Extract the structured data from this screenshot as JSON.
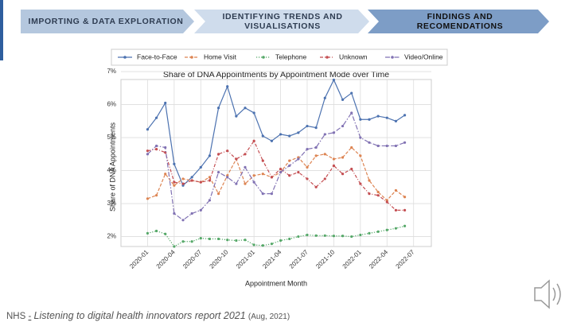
{
  "header": {
    "steps": [
      {
        "lines": [
          "IMPORTING & DATA EXPLORATION"
        ]
      },
      {
        "lines": [
          "IDENTIFYING TRENDS AND",
          "VISUALISATIONS"
        ]
      },
      {
        "lines": [
          "FINDINGS AND",
          "RECOMENDATIONS"
        ]
      }
    ]
  },
  "chart_data": {
    "type": "line",
    "title": "Share of DNA Appointments by Appointment Mode over Time",
    "x_label": "Appointment Month",
    "y_label": "Share of DNA Appointments",
    "x": [
      "2020-01",
      "2020-02",
      "2020-03",
      "2020-04",
      "2020-05",
      "2020-06",
      "2020-07",
      "2020-08",
      "2020-09",
      "2020-10",
      "2020-11",
      "2020-12",
      "2021-01",
      "2021-02",
      "2021-03",
      "2021-04",
      "2021-05",
      "2021-06",
      "2021-07",
      "2021-08",
      "2021-09",
      "2021-10",
      "2021-11",
      "2021-12",
      "2022-01",
      "2022-02",
      "2022-03",
      "2022-04",
      "2022-05",
      "2022-06"
    ],
    "xlim": [
      "2019-10",
      "2022-09"
    ],
    "xticks": [
      "2020-01",
      "2020-04",
      "2020-07",
      "2020-10",
      "2021-01",
      "2021-04",
      "2021-07",
      "2021-10",
      "2022-01",
      "2022-04",
      "2022-07"
    ],
    "ylim": [
      1.7,
      7.05
    ],
    "yticks": [
      {
        "value": 2,
        "label": "2%"
      },
      {
        "value": 3,
        "label": "3%"
      },
      {
        "value": 4,
        "label": "4%"
      },
      {
        "value": 5,
        "label": "5%"
      },
      {
        "value": 6,
        "label": "6%"
      },
      {
        "value": 7,
        "label": "7%"
      }
    ],
    "grid": true,
    "legend": "top",
    "series": [
      {
        "name": "Face-to-Face",
        "color": "#4c72b0",
        "dash": "solid",
        "values": [
          5.25,
          5.6,
          6.05,
          4.2,
          3.55,
          3.8,
          4.1,
          4.45,
          5.9,
          6.55,
          5.65,
          5.9,
          5.75,
          5.05,
          4.9,
          5.1,
          5.05,
          5.15,
          5.35,
          5.3,
          6.2,
          6.75,
          6.15,
          6.35,
          5.55,
          5.55,
          5.65,
          5.6,
          5.5,
          5.68
        ]
      },
      {
        "name": "Home Visit",
        "color": "#dd8452",
        "dash": "dashed",
        "values": [
          3.15,
          3.25,
          3.9,
          3.55,
          3.75,
          3.7,
          3.65,
          3.8,
          3.3,
          3.85,
          4.35,
          3.6,
          3.85,
          3.9,
          3.8,
          3.95,
          4.3,
          4.4,
          4.1,
          4.45,
          4.5,
          4.35,
          4.4,
          4.7,
          4.45,
          3.7,
          3.35,
          3.1,
          3.4,
          3.2
        ]
      },
      {
        "name": "Telephone",
        "color": "#55a868",
        "dash": "dotted",
        "values": [
          2.1,
          2.17,
          2.08,
          1.7,
          1.85,
          1.85,
          1.95,
          1.93,
          1.93,
          1.9,
          1.88,
          1.9,
          1.75,
          1.73,
          1.78,
          1.88,
          1.93,
          2.0,
          2.05,
          2.03,
          2.03,
          2.02,
          2.02,
          2.0,
          2.05,
          2.1,
          2.15,
          2.2,
          2.25,
          2.32
        ]
      },
      {
        "name": "Unknown",
        "color": "#c44e52",
        "dash": "dashdot",
        "values": [
          4.6,
          4.65,
          4.55,
          3.65,
          3.6,
          3.7,
          3.65,
          3.7,
          4.5,
          4.6,
          4.35,
          4.5,
          4.9,
          4.3,
          3.8,
          4.05,
          3.85,
          3.95,
          3.75,
          3.5,
          3.75,
          4.15,
          3.9,
          4.05,
          3.6,
          3.3,
          3.25,
          3.05,
          2.8,
          2.8
        ]
      },
      {
        "name": "Video/Online",
        "color": "#8172b3",
        "dash": "longdash",
        "values": [
          4.5,
          4.75,
          4.7,
          2.7,
          2.5,
          2.7,
          2.8,
          3.1,
          3.95,
          3.8,
          3.6,
          4.1,
          3.65,
          3.3,
          3.3,
          3.95,
          4.15,
          4.35,
          4.65,
          4.7,
          5.1,
          5.15,
          5.35,
          5.75,
          5.0,
          4.85,
          4.75,
          4.75,
          4.75,
          4.85
        ]
      }
    ]
  },
  "footer": {
    "source": "NHS",
    "separator": "-",
    "title": "Listening to digital health innovators report 2021",
    "date": "(Aug, 2021)"
  }
}
